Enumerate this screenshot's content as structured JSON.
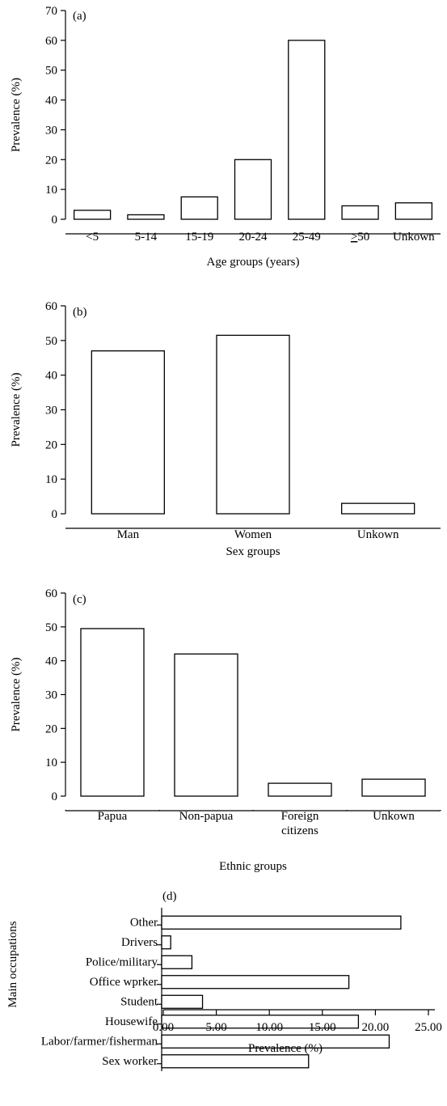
{
  "chart_data": [
    {
      "type": "bar",
      "panel_label": "(a)",
      "categories": [
        "<5",
        "5-14",
        "15-19",
        "20-24",
        "25-49",
        "≥50",
        "Unkown"
      ],
      "values": [
        3.0,
        1.5,
        7.5,
        20.0,
        60.0,
        4.5,
        5.5
      ],
      "xlabel": "Age groups (years)",
      "ylabel": "Prevalence (%)",
      "ylim": [
        0,
        70
      ],
      "yticks": [
        "0",
        "10",
        "20",
        "30",
        "40",
        "50",
        "60",
        "70"
      ]
    },
    {
      "type": "bar",
      "panel_label": "(b)",
      "categories": [
        "Man",
        "Women",
        "Unkown"
      ],
      "values": [
        47.0,
        51.5,
        3.0
      ],
      "xlabel": "Sex groups",
      "ylabel": "Prevalence (%)",
      "ylim": [
        0,
        60
      ],
      "yticks": [
        "0",
        "10",
        "20",
        "30",
        "40",
        "50",
        "60"
      ]
    },
    {
      "type": "bar",
      "panel_label": "(c)",
      "categories": [
        "Papua",
        "Non-papua",
        "Foreign citizens",
        "Unkown"
      ],
      "values": [
        49.5,
        42.0,
        3.8,
        5.0
      ],
      "xlabel": "Ethnic groups",
      "ylabel": "Prevalence (%)",
      "ylim": [
        0,
        60
      ],
      "yticks": [
        "0",
        "10",
        "20",
        "30",
        "40",
        "50",
        "60"
      ]
    },
    {
      "type": "bar",
      "orientation": "horizontal",
      "panel_label": "(d)",
      "categories": [
        "Other",
        "Drivers",
        "Police/military",
        "Office wprker",
        "Student",
        "Housewife",
        "Labor/farmer/fisherman",
        "Sex worker"
      ],
      "values": [
        22.4,
        0.7,
        2.7,
        17.5,
        3.7,
        18.4,
        21.3,
        13.7
      ],
      "xlabel": "Prevalence (%)",
      "ylabel": "Main occupations",
      "xlim": [
        0,
        25
      ],
      "xticks": [
        "0.00",
        "5.00",
        "10.00",
        "15.00",
        "20.00",
        "25.00"
      ]
    }
  ]
}
